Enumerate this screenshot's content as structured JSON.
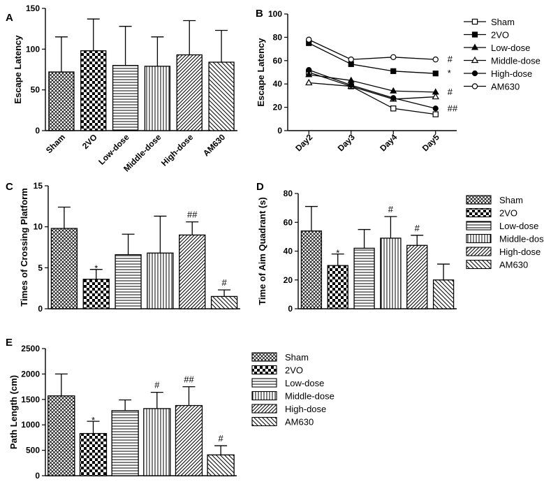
{
  "chart_data": [
    {
      "panel": "A",
      "type": "bar",
      "ylabel": "Escape Latency",
      "categories": [
        "Sham",
        "2VO",
        "Low-dose",
        "Middle-dose",
        "High-dose",
        "AM630"
      ],
      "values": [
        72,
        98,
        80,
        79,
        93,
        84
      ],
      "errors": [
        43,
        39,
        48,
        36,
        42,
        39
      ],
      "ylim": [
        0,
        150
      ],
      "yticks": [
        "0",
        "50",
        "100",
        "150"
      ],
      "sig": [
        "",
        "",
        "",
        "",
        "",
        ""
      ]
    },
    {
      "panel": "B",
      "type": "line",
      "ylabel": "Escape Latency",
      "categories": [
        "Day2",
        "Day3",
        "Day4",
        "Day5"
      ],
      "ylim": [
        0,
        100
      ],
      "yticks": [
        "0",
        "20",
        "40",
        "60",
        "80",
        "100"
      ],
      "series": [
        {
          "name": "Sham",
          "values": [
            50,
            38,
            19,
            14
          ]
        },
        {
          "name": "2VO",
          "values": [
            75,
            57,
            51,
            49
          ]
        },
        {
          "name": "Low-dose",
          "values": [
            48,
            43,
            34,
            33
          ]
        },
        {
          "name": "Middle-dose",
          "values": [
            41,
            38,
            27,
            29
          ]
        },
        {
          "name": "High-dose",
          "values": [
            52,
            39,
            28,
            19
          ]
        },
        {
          "name": "AM630",
          "values": [
            78,
            61,
            63,
            61
          ]
        }
      ],
      "annotations": [
        {
          "series": "AM630",
          "text": "#"
        },
        {
          "series": "2VO",
          "text": "*"
        },
        {
          "series": "Low-dose",
          "text": "#"
        },
        {
          "series": "High-dose",
          "text": "##"
        }
      ]
    },
    {
      "panel": "C",
      "type": "bar",
      "ylabel": "Times of Crossing Platform",
      "categories": [
        "Sham",
        "2VO",
        "Low-dose",
        "Middle-dose",
        "High-dose",
        "AM630"
      ],
      "values": [
        9.8,
        3.6,
        6.6,
        6.8,
        9.0,
        1.5
      ],
      "errors": [
        2.6,
        1.2,
        2.5,
        4.5,
        1.6,
        0.8
      ],
      "ylim": [
        0,
        15
      ],
      "yticks": [
        "0",
        "5",
        "10",
        "15"
      ],
      "sig": [
        "",
        "*",
        "",
        "",
        "##",
        "#"
      ]
    },
    {
      "panel": "D",
      "type": "bar",
      "ylabel": "Time of Aim Quadrant (s)",
      "categories": [
        "Sham",
        "2VO",
        "Low-dose",
        "Middle-dose",
        "High-dose",
        "AM630"
      ],
      "values": [
        54,
        30,
        42,
        49,
        44,
        20
      ],
      "errors": [
        17,
        8,
        13,
        15,
        7,
        11
      ],
      "ylim": [
        0,
        80
      ],
      "yticks": [
        "0",
        "20",
        "40",
        "60",
        "80"
      ],
      "sig": [
        "",
        "*",
        "",
        "#",
        "#",
        ""
      ]
    },
    {
      "panel": "E",
      "type": "bar",
      "ylabel": "Path Length (cm)",
      "categories": [
        "Sham",
        "2VO",
        "Low-dose",
        "Middle-dose",
        "High-dose",
        "AM630"
      ],
      "values": [
        1570,
        830,
        1280,
        1320,
        1380,
        410
      ],
      "errors": [
        430,
        240,
        210,
        320,
        370,
        180
      ],
      "ylim": [
        0,
        2500
      ],
      "yticks": [
        "0",
        "500",
        "1000",
        "1500",
        "2000",
        "2500"
      ],
      "sig": [
        "",
        "*",
        "",
        "#",
        "##",
        "#"
      ]
    }
  ],
  "legend_bars": [
    "Sham",
    "2VO",
    "Low-dose",
    "Middle-dose",
    "High-dose",
    "AM630"
  ],
  "legend_lines": [
    "Sham",
    "2VO",
    "Low-dose",
    "Middle-dose",
    "High-dose",
    "AM630"
  ]
}
